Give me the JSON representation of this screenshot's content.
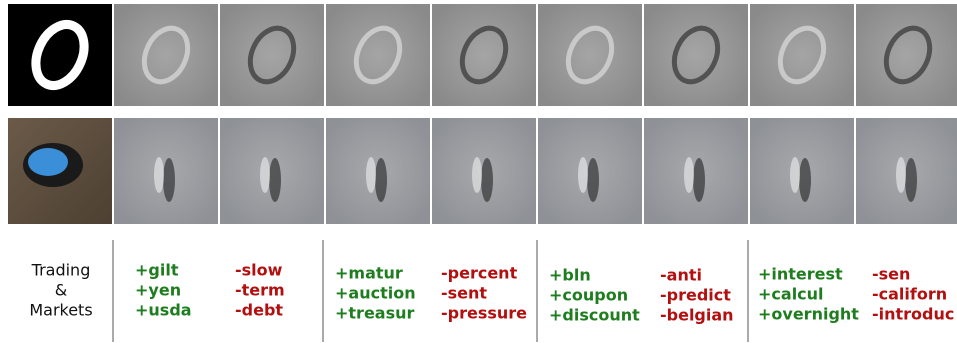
{
  "label": [
    "Trading",
    "&",
    "Markets"
  ],
  "groups": [
    {
      "positive": [
        "+gilt",
        "+yen",
        "+usda"
      ],
      "negative": [
        "-slow",
        "-term",
        "-debt"
      ]
    },
    {
      "positive": [
        "+matur",
        "+auction",
        "+treasur"
      ],
      "negative": [
        "-percent",
        "-sent",
        "-pressure"
      ]
    },
    {
      "positive": [
        "+bln",
        "+coupon",
        "+discount"
      ],
      "negative": [
        "-anti",
        "-predict",
        "-belgian"
      ]
    },
    {
      "positive": [
        "+interest",
        "+calcul",
        "+overnight"
      ],
      "negative": [
        "-sen",
        "-californ",
        "-introduc"
      ]
    }
  ]
}
